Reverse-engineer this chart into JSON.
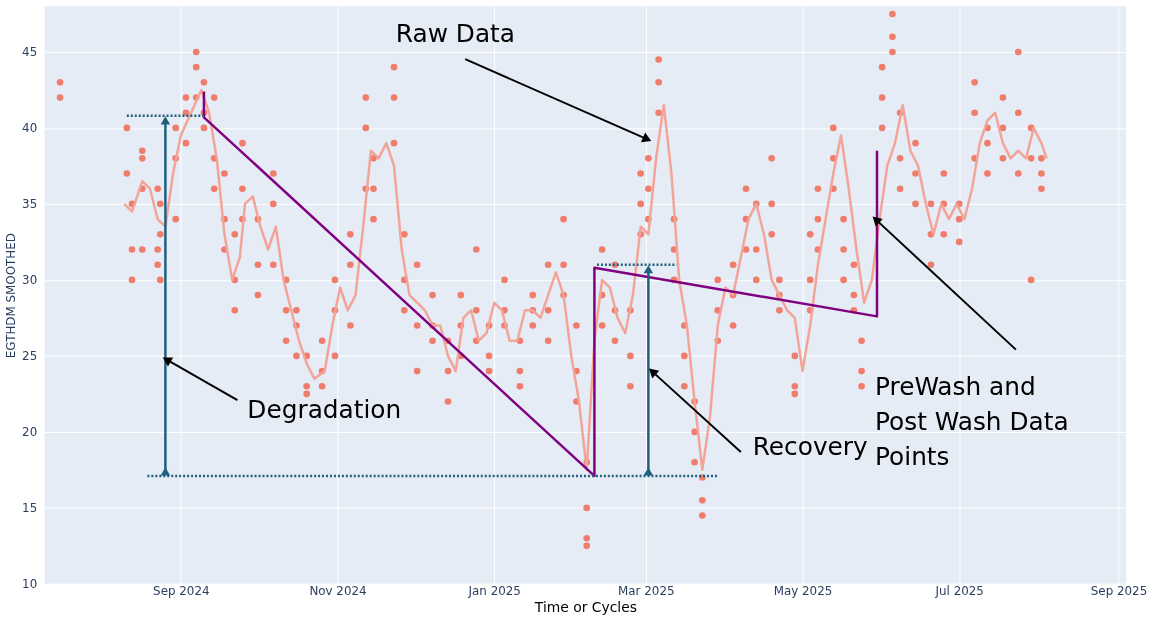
{
  "chart_data": {
    "type": "scatter",
    "xlabel": "Time or Cycles",
    "ylabel": "EGTHDM SMOOTHED",
    "xlim": [
      "2024-07-10",
      "2025-09-04"
    ],
    "ylim": [
      10,
      48
    ],
    "xticks": [
      {
        "value": "2024-09",
        "label": "Sep 2024"
      },
      {
        "value": "2024-11",
        "label": "Nov 2024"
      },
      {
        "value": "2025-01",
        "label": "Jan 2025"
      },
      {
        "value": "2025-03",
        "label": "Mar 2025"
      },
      {
        "value": "2025-05",
        "label": "May 2025"
      },
      {
        "value": "2025-07",
        "label": "Jul 2025"
      },
      {
        "value": "2025-09",
        "label": "Sep 2025"
      }
    ],
    "yticks": [
      10,
      15,
      20,
      25,
      30,
      35,
      40,
      45
    ],
    "grid": true,
    "series": [
      {
        "type": "scatter",
        "marker": "circle",
        "color": "#f07c6c",
        "x": [
          "2024-07-16",
          "2024-07-16",
          "2024-08-11",
          "2024-08-11",
          "2024-08-13",
          "2024-08-13",
          "2024-08-13",
          "2024-08-17",
          "2024-08-17",
          "2024-08-17",
          "2024-08-17",
          "2024-08-23",
          "2024-08-23",
          "2024-08-23",
          "2024-08-24",
          "2024-08-24",
          "2024-08-24",
          "2024-08-30",
          "2024-08-30",
          "2024-08-30",
          "2024-09-03",
          "2024-09-03",
          "2024-09-03",
          "2024-09-07",
          "2024-09-07",
          "2024-09-07",
          "2024-09-10",
          "2024-09-10",
          "2024-09-10",
          "2024-09-14",
          "2024-09-14",
          "2024-09-14",
          "2024-09-18",
          "2024-09-18",
          "2024-09-18",
          "2024-09-22",
          "2024-09-22",
          "2024-09-22",
          "2024-09-25",
          "2024-09-25",
          "2024-09-25",
          "2024-10-01",
          "2024-10-01",
          "2024-10-01",
          "2024-10-07",
          "2024-10-07",
          "2024-10-07",
          "2024-10-12",
          "2024-10-12",
          "2024-10-12",
          "2024-10-16",
          "2024-10-16",
          "2024-10-16",
          "2024-10-20",
          "2024-10-20",
          "2024-10-20",
          "2024-10-26",
          "2024-10-26",
          "2024-10-26",
          "2024-10-31",
          "2024-10-31",
          "2024-10-31",
          "2024-11-06",
          "2024-11-06",
          "2024-11-06",
          "2024-11-12",
          "2024-11-12",
          "2024-11-12",
          "2024-11-15",
          "2024-11-15",
          "2024-11-15",
          "2024-11-23",
          "2024-11-23",
          "2024-11-23",
          "2024-11-27",
          "2024-11-27",
          "2024-11-27",
          "2024-12-02",
          "2024-12-02",
          "2024-12-02",
          "2024-12-08",
          "2024-12-08",
          "2024-12-08",
          "2024-12-14",
          "2024-12-14",
          "2024-12-14",
          "2024-12-19",
          "2024-12-19",
          "2024-12-19",
          "2024-12-25",
          "2024-12-25",
          "2024-12-25",
          "2024-12-30",
          "2024-12-30",
          "2024-12-30",
          "2025-01-05",
          "2025-01-05",
          "2025-01-05",
          "2025-01-11",
          "2025-01-11",
          "2025-01-11",
          "2025-01-16",
          "2025-01-16",
          "2025-01-16",
          "2025-01-22",
          "2025-01-22",
          "2025-01-22",
          "2025-01-28",
          "2025-01-28",
          "2025-01-28",
          "2025-02-02",
          "2025-02-02",
          "2025-02-02",
          "2025-02-06",
          "2025-02-06",
          "2025-02-06",
          "2025-02-06",
          "2025-02-12",
          "2025-02-12",
          "2025-02-12",
          "2025-02-17",
          "2025-02-17",
          "2025-02-17",
          "2025-02-23",
          "2025-02-23",
          "2025-02-23",
          "2025-02-27",
          "2025-02-27",
          "2025-02-27",
          "2025-03-02",
          "2025-03-02",
          "2025-03-02",
          "2025-03-06",
          "2025-03-06",
          "2025-03-06",
          "2025-03-12",
          "2025-03-12",
          "2025-03-12",
          "2025-03-16",
          "2025-03-16",
          "2025-03-16",
          "2025-03-20",
          "2025-03-20",
          "2025-03-20",
          "2025-03-23",
          "2025-03-23",
          "2025-03-23",
          "2025-03-29",
          "2025-03-29",
          "2025-03-29",
          "2025-04-04",
          "2025-04-04",
          "2025-04-04",
          "2025-04-09",
          "2025-04-09",
          "2025-04-09",
          "2025-04-13",
          "2025-04-13",
          "2025-04-13",
          "2025-04-19",
          "2025-04-19",
          "2025-04-19",
          "2025-04-22",
          "2025-04-22",
          "2025-04-22",
          "2025-04-28",
          "2025-04-28",
          "2025-04-28",
          "2025-05-04",
          "2025-05-04",
          "2025-05-04",
          "2025-05-07",
          "2025-05-07",
          "2025-05-07",
          "2025-05-13",
          "2025-05-13",
          "2025-05-13",
          "2025-05-17",
          "2025-05-17",
          "2025-05-17",
          "2025-05-21",
          "2025-05-21",
          "2025-05-21",
          "2025-05-24",
          "2025-05-24",
          "2025-05-24",
          "2025-06-01",
          "2025-06-01",
          "2025-06-01",
          "2025-06-05",
          "2025-06-05",
          "2025-06-05",
          "2025-06-08",
          "2025-06-08",
          "2025-06-08",
          "2025-06-14",
          "2025-06-14",
          "2025-06-14",
          "2025-06-20",
          "2025-06-20",
          "2025-06-20",
          "2025-06-25",
          "2025-06-25",
          "2025-06-25",
          "2025-07-01",
          "2025-07-01",
          "2025-07-01",
          "2025-07-07",
          "2025-07-07",
          "2025-07-07",
          "2025-07-12",
          "2025-07-12",
          "2025-07-12",
          "2025-07-18",
          "2025-07-18",
          "2025-07-18",
          "2025-07-24",
          "2025-07-24",
          "2025-07-24",
          "2025-07-29",
          "2025-07-29",
          "2025-07-29",
          "2025-08-02",
          "2025-08-02",
          "2025-08-02"
        ],
        "values": [
          43,
          42,
          40,
          37,
          35,
          32,
          30,
          38.5,
          38,
          36,
          32,
          36,
          32,
          31,
          35,
          33,
          30,
          38,
          40,
          34,
          42,
          41,
          39,
          45,
          44,
          42,
          43,
          41,
          40,
          42,
          38,
          36,
          37,
          34,
          32,
          33,
          30,
          28,
          39,
          36,
          34,
          34,
          31,
          29,
          37,
          35,
          31,
          30,
          28,
          26,
          28,
          27,
          25,
          25,
          23,
          22.5,
          26,
          24,
          23,
          30,
          28,
          25,
          33,
          31,
          27,
          42,
          40,
          36,
          38,
          36,
          34,
          44,
          42,
          39,
          33,
          30,
          28,
          31,
          27,
          24,
          29,
          27,
          26,
          26,
          24,
          22,
          29,
          27,
          25,
          32,
          28,
          26,
          27,
          25,
          24,
          30,
          28,
          27,
          26,
          24,
          23,
          29,
          28,
          27,
          31,
          28,
          26,
          34,
          31,
          29,
          27,
          24,
          22,
          18,
          15,
          13,
          12.5,
          32,
          29,
          27,
          31,
          28,
          26,
          28,
          25,
          23,
          37,
          35,
          33,
          38,
          36,
          34,
          44.5,
          43,
          41,
          34,
          32,
          30,
          27,
          25,
          23,
          22,
          20,
          18,
          17,
          15.5,
          14.5,
          30,
          28,
          26,
          31,
          29,
          27,
          36,
          34,
          32,
          35,
          32,
          30,
          38,
          35,
          33,
          30,
          29,
          28,
          25,
          23,
          22.5,
          33,
          30,
          28,
          36,
          34,
          32,
          40,
          38,
          36,
          34,
          32,
          30,
          31,
          29,
          28,
          26,
          24,
          23,
          44,
          42,
          40,
          47.5,
          46,
          45,
          41,
          38,
          36,
          39,
          37,
          35,
          35,
          33,
          31,
          37,
          35,
          33,
          35,
          34,
          32.5,
          43,
          41,
          38,
          40,
          39,
          37,
          42,
          40,
          38,
          45,
          41,
          37,
          40,
          38,
          30,
          38,
          37,
          36
        ]
      },
      {
        "type": "line",
        "color": "#f3a498",
        "x": [
          "2024-08-10",
          "2024-08-13",
          "2024-08-17",
          "2024-08-20",
          "2024-08-23",
          "2024-08-26",
          "2024-08-29",
          "2024-09-01",
          "2024-09-05",
          "2024-09-09",
          "2024-09-12",
          "2024-09-15",
          "2024-09-18",
          "2024-09-21",
          "2024-09-24",
          "2024-09-26",
          "2024-09-29",
          "2024-10-02",
          "2024-10-05",
          "2024-10-08",
          "2024-10-11",
          "2024-10-14",
          "2024-10-17",
          "2024-10-20",
          "2024-10-23",
          "2024-10-27",
          "2024-10-30",
          "2024-11-02",
          "2024-11-05",
          "2024-11-08",
          "2024-11-11",
          "2024-11-14",
          "2024-11-17",
          "2024-11-20",
          "2024-11-23",
          "2024-11-26",
          "2024-11-29",
          "2024-12-02",
          "2024-12-05",
          "2024-12-08",
          "2024-12-11",
          "2024-12-14",
          "2024-12-17",
          "2024-12-20",
          "2024-12-23",
          "2024-12-26",
          "2024-12-29",
          "2025-01-01",
          "2025-01-04",
          "2025-01-07",
          "2025-01-10",
          "2025-01-13",
          "2025-01-16",
          "2025-01-19",
          "2025-01-22",
          "2025-01-25",
          "2025-01-28",
          "2025-01-31",
          "2025-02-03",
          "2025-02-06",
          "2025-02-09",
          "2025-02-12",
          "2025-02-15",
          "2025-02-18",
          "2025-02-21",
          "2025-02-24",
          "2025-02-27",
          "2025-03-02",
          "2025-03-05",
          "2025-03-08",
          "2025-03-11",
          "2025-03-14",
          "2025-03-17",
          "2025-03-20",
          "2025-03-23",
          "2025-03-26",
          "2025-03-29",
          "2025-04-01",
          "2025-04-04",
          "2025-04-07",
          "2025-04-10",
          "2025-04-13",
          "2025-04-16",
          "2025-04-19",
          "2025-04-22",
          "2025-04-25",
          "2025-04-28",
          "2025-05-01",
          "2025-05-04",
          "2025-05-07",
          "2025-05-10",
          "2025-05-13",
          "2025-05-16",
          "2025-05-19",
          "2025-05-22",
          "2025-05-25",
          "2025-05-28",
          "2025-05-31",
          "2025-06-03",
          "2025-06-06",
          "2025-06-09",
          "2025-06-12",
          "2025-06-15",
          "2025-06-18",
          "2025-06-21",
          "2025-06-24",
          "2025-06-27",
          "2025-06-30",
          "2025-07-03",
          "2025-07-06",
          "2025-07-09",
          "2025-07-12",
          "2025-07-15",
          "2025-07-18",
          "2025-07-21",
          "2025-07-24",
          "2025-07-27",
          "2025-07-30",
          "2025-08-02",
          "2025-08-04"
        ],
        "values": [
          35,
          34.5,
          36.5,
          36,
          34,
          33.5,
          37,
          39.5,
          41,
          42.5,
          41,
          38,
          33,
          30,
          31.5,
          35,
          35.5,
          33.5,
          32,
          33.5,
          30,
          28,
          26,
          24.5,
          23.5,
          24,
          27,
          29.5,
          28,
          29,
          33.5,
          38.5,
          38,
          39,
          37.5,
          32,
          29,
          28.5,
          28,
          27,
          27,
          25,
          24,
          27.5,
          28,
          26,
          26.5,
          28.5,
          28,
          26,
          26,
          28,
          28,
          27.5,
          29,
          30.5,
          29,
          25,
          22,
          17.5,
          26,
          30,
          29.5,
          27.5,
          26.5,
          29,
          33.5,
          33,
          38,
          41.5,
          37,
          30,
          27,
          22,
          17.5,
          21,
          27,
          29.5,
          29,
          31.5,
          34,
          35,
          33,
          30,
          29,
          28,
          27.5,
          24,
          27,
          31,
          34,
          37,
          39.5,
          36,
          32,
          28.5,
          30,
          34,
          37.5,
          39,
          41.5,
          38.5,
          37.5,
          35,
          33,
          35,
          34,
          35,
          34,
          36,
          39,
          40.5,
          41,
          39,
          38,
          38.5,
          38,
          40,
          39,
          38
        ]
      },
      {
        "type": "line",
        "color": "#800080",
        "x": [
          "2024-09-10",
          "2024-09-10",
          "2025-02-09",
          "2025-02-09",
          "2025-05-30",
          "2025-05-30"
        ],
        "values": [
          42.4,
          40.7,
          17.1,
          30.8,
          27.6,
          38.5
        ]
      },
      {
        "type": "line",
        "line_style": "dotted",
        "color": "#1f5f7f",
        "x": [
          "2024-08-11",
          "2024-09-10"
        ],
        "values": [
          40.8,
          40.8
        ]
      },
      {
        "type": "line",
        "line_style": "dotted",
        "color": "#1f5f7f",
        "x": [
          "2024-08-19",
          "2025-03-29"
        ],
        "values": [
          17.1,
          17.1
        ]
      },
      {
        "type": "line",
        "line_style": "dotted",
        "color": "#1f5f7f",
        "x": [
          "2025-02-10",
          "2025-03-13"
        ],
        "values": [
          31,
          31
        ]
      },
      {
        "type": "line",
        "marker": "triangle",
        "color": "#1f5f7f",
        "x": [
          "2024-08-26",
          "2024-08-26"
        ],
        "values": [
          40.5,
          17.4
        ]
      },
      {
        "type": "line",
        "marker": "triangle",
        "color": "#1f5f7f",
        "x": [
          "2025-03-02",
          "2025-03-02"
        ],
        "values": [
          30.7,
          17.4
        ]
      }
    ],
    "annotations": [
      {
        "text": "Raw Data",
        "x": "2025-03-01",
        "y": 39.3
      },
      {
        "text": "Degradation",
        "x": "2024-08-27",
        "y": 24.7
      },
      {
        "text": "Recovery",
        "x": "2025-03-04",
        "y": 23.9
      },
      {
        "text": "PreWash and\nPost Wash Data\nPoints",
        "x": "2025-05-30",
        "y": 33.9
      }
    ]
  }
}
